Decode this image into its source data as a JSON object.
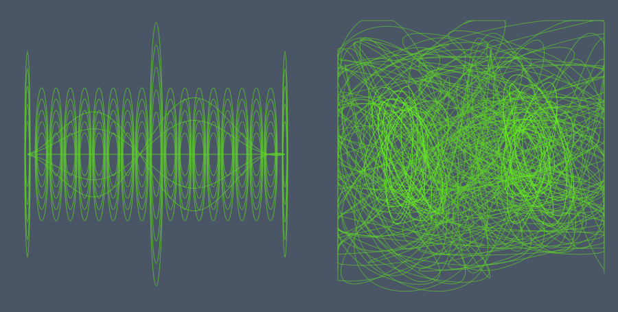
{
  "canvas": {
    "background": "#4a5566",
    "stroke_color": "#5fd12a",
    "stroke_opacity": 0.75
  },
  "panels": [
    {
      "id": "left",
      "kind": "standing-wave-lobes",
      "lobe_count": 19,
      "rings_per_lobe": 5
    },
    {
      "id": "right",
      "kind": "tangled-loops",
      "loop_count": 90,
      "cluster_count": 2
    }
  ]
}
